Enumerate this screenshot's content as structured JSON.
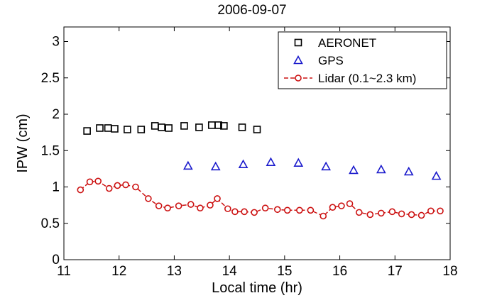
{
  "chart_data": {
    "type": "scatter",
    "title": "2006-09-07",
    "xlabel": "Local time (hr)",
    "ylabel": "IPW (cm)",
    "xlim": [
      11,
      18
    ],
    "ylim": [
      0,
      3.2
    ],
    "xticks": [
      "11",
      "12",
      "13",
      "14",
      "15",
      "16",
      "17",
      "18"
    ],
    "yticks": [
      "0",
      "0.5",
      "1",
      "1.5",
      "2",
      "2.5",
      "3"
    ],
    "grid": false,
    "legend_position": "top-right",
    "series": [
      {
        "name": "AERONET",
        "marker": "square",
        "line": false,
        "color": "#000000",
        "x": [
          11.42,
          11.65,
          11.8,
          11.92,
          12.15,
          12.4,
          12.65,
          12.77,
          12.9,
          13.18,
          13.45,
          13.68,
          13.8,
          13.9,
          14.23,
          14.5
        ],
        "y": [
          1.77,
          1.81,
          1.81,
          1.8,
          1.79,
          1.79,
          1.84,
          1.82,
          1.81,
          1.84,
          1.82,
          1.85,
          1.85,
          1.84,
          1.82,
          1.79
        ]
      },
      {
        "name": "GPS",
        "marker": "triangle",
        "line": false,
        "color": "#1a1acc",
        "x": [
          13.25,
          13.75,
          14.25,
          14.75,
          15.25,
          15.75,
          16.25,
          16.75,
          17.25,
          17.75
        ],
        "y": [
          1.29,
          1.28,
          1.31,
          1.34,
          1.33,
          1.28,
          1.23,
          1.24,
          1.21,
          1.15
        ]
      },
      {
        "name": "Lidar (0.1~2.3 km)",
        "marker": "circle",
        "line": true,
        "color": "#cc1111",
        "x": [
          11.3,
          11.47,
          11.62,
          11.82,
          11.97,
          12.12,
          12.3,
          12.53,
          12.72,
          12.88,
          13.08,
          13.3,
          13.47,
          13.65,
          13.78,
          13.97,
          14.1,
          14.27,
          14.45,
          14.65,
          14.87,
          15.05,
          15.27,
          15.47,
          15.7,
          15.87,
          16.03,
          16.18,
          16.35,
          16.55,
          16.75,
          16.95,
          17.12,
          17.3,
          17.48,
          17.65,
          17.82
        ],
        "y": [
          0.96,
          1.07,
          1.08,
          0.98,
          1.02,
          1.03,
          1.0,
          0.84,
          0.74,
          0.71,
          0.74,
          0.76,
          0.71,
          0.75,
          0.84,
          0.7,
          0.66,
          0.66,
          0.65,
          0.71,
          0.69,
          0.68,
          0.68,
          0.68,
          0.6,
          0.72,
          0.74,
          0.77,
          0.65,
          0.62,
          0.64,
          0.66,
          0.63,
          0.62,
          0.61,
          0.67,
          0.67
        ]
      }
    ]
  }
}
